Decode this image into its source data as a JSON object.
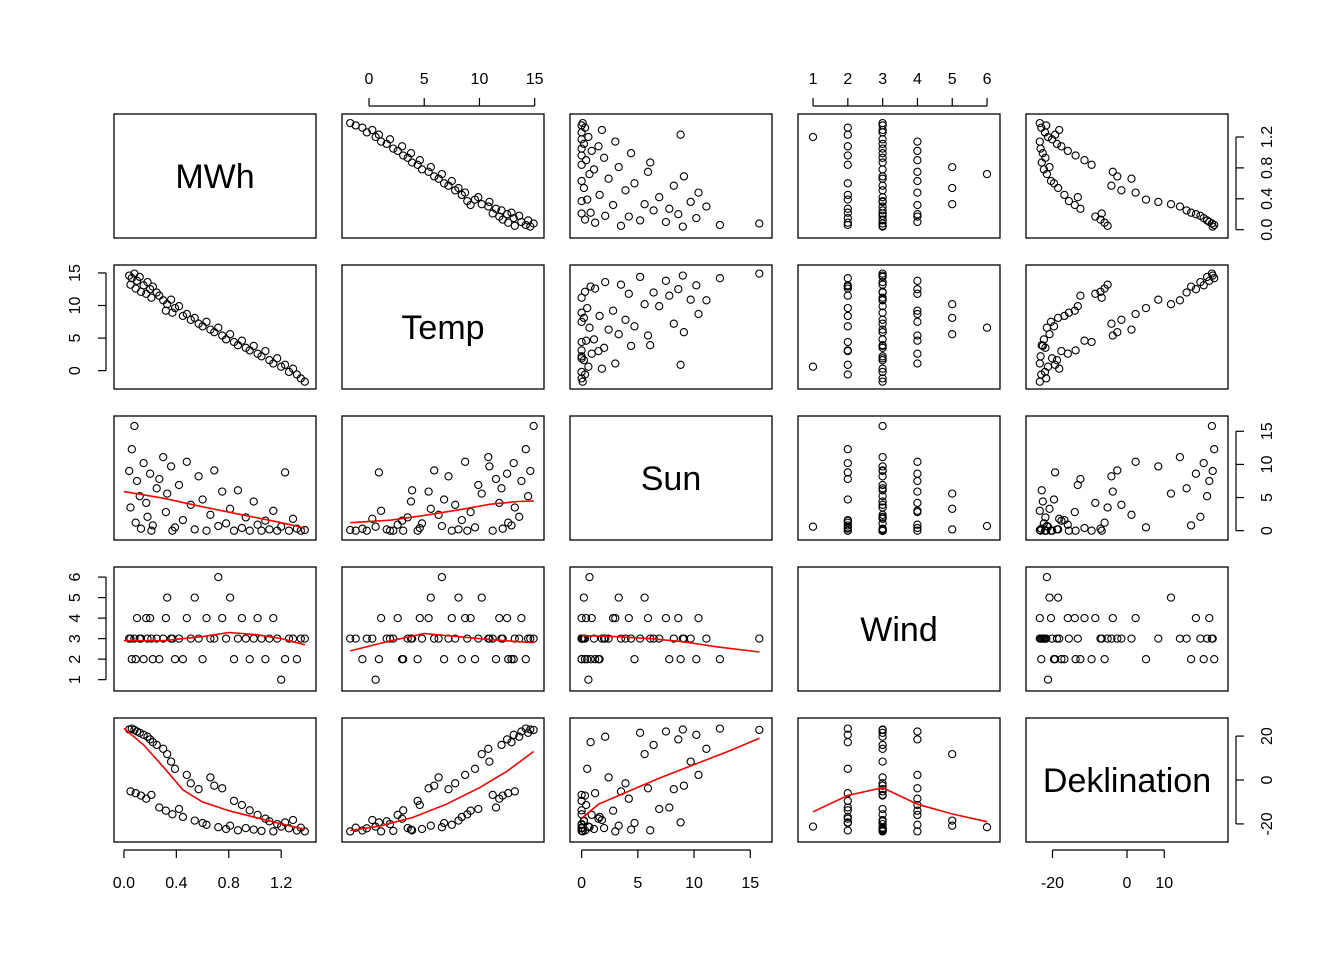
{
  "chart_data": {
    "type": "scatter",
    "subtype": "scatterplot-matrix",
    "grid": false,
    "point_style": "open-circle",
    "smoother_color": "#ff0000",
    "variables": [
      {
        "name": "MWh",
        "range": [
          -0.03,
          1.42
        ],
        "ticks": [
          0.0,
          0.4,
          0.8,
          1.2
        ],
        "tick_labels": [
          "0.0",
          "0.4",
          "0.8",
          "1.2"
        ]
      },
      {
        "name": "Temp",
        "range": [
          -1.9,
          15.3
        ],
        "ticks": [
          0,
          5,
          10,
          15
        ],
        "tick_labels": [
          "0",
          "5",
          "10",
          "15"
        ]
      },
      {
        "name": "Sun",
        "range": [
          -0.5,
          16.4
        ],
        "ticks": [
          0,
          5,
          10,
          15
        ],
        "tick_labels": [
          "0",
          "5",
          "10",
          "15"
        ]
      },
      {
        "name": "Wind",
        "range": [
          0.74,
          6.2
        ],
        "ticks": [
          1,
          2,
          3,
          4,
          5,
          6
        ],
        "tick_labels": [
          "1",
          "2",
          "3",
          "4",
          "5",
          "6"
        ]
      },
      {
        "name": "Deklination",
        "range": [
          -25.5,
          25.5
        ],
        "ticks": [
          -20,
          0,
          20
        ],
        "tick_labels": [
          "-20",
          "0",
          "20"
        ],
        "bottom_ticks": [
          -20,
          0,
          10
        ],
        "bottom_tick_labels": [
          "-20",
          "0",
          "10"
        ]
      }
    ],
    "axes_placement": {
      "top": [
        1,
        3
      ],
      "bottom": [
        0,
        2,
        4
      ],
      "left": [
        1,
        3
      ],
      "right": [
        0,
        2,
        4
      ]
    },
    "smoothed_panels": "lower",
    "observations": [
      {
        "MWh": 0.04,
        "Temp": 14.6,
        "Sun": 9.0,
        "Wind": 3,
        "Deklination": 23.0
      },
      {
        "MWh": 0.06,
        "Temp": 14.2,
        "Sun": 12.3,
        "Wind": 2,
        "Deklination": 23.4
      },
      {
        "MWh": 0.08,
        "Temp": 14.9,
        "Sun": 15.8,
        "Wind": 3,
        "Deklination": 22.8
      },
      {
        "MWh": 0.1,
        "Temp": 13.8,
        "Sun": 7.5,
        "Wind": 4,
        "Deklination": 22.1
      },
      {
        "MWh": 0.12,
        "Temp": 14.4,
        "Sun": 5.2,
        "Wind": 3,
        "Deklination": 21.5
      },
      {
        "MWh": 0.15,
        "Temp": 13.1,
        "Sun": 10.2,
        "Wind": 2,
        "Deklination": 20.6
      },
      {
        "MWh": 0.18,
        "Temp": 13.6,
        "Sun": 2.1,
        "Wind": 3,
        "Deklination": 19.7
      },
      {
        "MWh": 0.2,
        "Temp": 12.5,
        "Sun": 8.6,
        "Wind": 4,
        "Deklination": 18.5
      },
      {
        "MWh": 0.22,
        "Temp": 12.9,
        "Sun": 0.8,
        "Wind": 2,
        "Deklination": 17.2
      },
      {
        "MWh": 0.25,
        "Temp": 12.0,
        "Sun": 6.4,
        "Wind": 3,
        "Deklination": 16.0
      },
      {
        "MWh": 0.05,
        "Temp": 13.2,
        "Sun": 3.5,
        "Wind": 3,
        "Deklination": -5.2
      },
      {
        "MWh": 0.09,
        "Temp": 12.6,
        "Sun": 1.2,
        "Wind": 2,
        "Deklination": -6.0
      },
      {
        "MWh": 0.13,
        "Temp": 12.1,
        "Sun": 0.3,
        "Wind": 3,
        "Deklination": -7.1
      },
      {
        "MWh": 0.17,
        "Temp": 11.8,
        "Sun": 4.2,
        "Wind": 4,
        "Deklination": -8.5
      },
      {
        "MWh": 0.21,
        "Temp": 11.2,
        "Sun": 0.0,
        "Wind": 3,
        "Deklination": -6.8
      },
      {
        "MWh": 0.27,
        "Temp": 11.5,
        "Sun": 7.8,
        "Wind": 2,
        "Deklination": -12.5
      },
      {
        "MWh": 0.3,
        "Temp": 10.8,
        "Sun": 11.1,
        "Wind": 3,
        "Deklination": 14.2
      },
      {
        "MWh": 0.33,
        "Temp": 10.2,
        "Sun": 5.6,
        "Wind": 5,
        "Deklination": 11.8
      },
      {
        "MWh": 0.36,
        "Temp": 10.9,
        "Sun": 9.7,
        "Wind": 3,
        "Deklination": 8.4
      },
      {
        "MWh": 0.39,
        "Temp": 9.6,
        "Sun": 0.5,
        "Wind": 2,
        "Deklination": 5.1
      },
      {
        "MWh": 0.32,
        "Temp": 9.2,
        "Sun": 2.8,
        "Wind": 4,
        "Deklination": -14.0
      },
      {
        "MWh": 0.37,
        "Temp": 8.9,
        "Sun": 0.0,
        "Wind": 3,
        "Deklination": -15.6
      },
      {
        "MWh": 0.42,
        "Temp": 9.9,
        "Sun": 6.9,
        "Wind": 3,
        "Deklination": -13.2
      },
      {
        "MWh": 0.45,
        "Temp": 8.4,
        "Sun": 1.6,
        "Wind": 2,
        "Deklination": -16.8
      },
      {
        "MWh": 0.48,
        "Temp": 8.7,
        "Sun": 10.4,
        "Wind": 4,
        "Deklination": 2.3
      },
      {
        "MWh": 0.51,
        "Temp": 7.8,
        "Sun": 3.9,
        "Wind": 3,
        "Deklination": -1.5
      },
      {
        "MWh": 0.54,
        "Temp": 8.1,
        "Sun": 0.2,
        "Wind": 5,
        "Deklination": -18.5
      },
      {
        "MWh": 0.57,
        "Temp": 7.2,
        "Sun": 8.2,
        "Wind": 3,
        "Deklination": -4.2
      },
      {
        "MWh": 0.6,
        "Temp": 6.8,
        "Sun": 4.7,
        "Wind": 2,
        "Deklination": -19.6
      },
      {
        "MWh": 0.63,
        "Temp": 7.5,
        "Sun": 0.0,
        "Wind": 4,
        "Deklination": -20.4
      },
      {
        "MWh": 0.66,
        "Temp": 6.3,
        "Sun": 2.4,
        "Wind": 3,
        "Deklination": 1.2
      },
      {
        "MWh": 0.69,
        "Temp": 5.9,
        "Sun": 9.1,
        "Wind": 3,
        "Deklination": -2.6
      },
      {
        "MWh": 0.72,
        "Temp": 6.6,
        "Sun": 0.7,
        "Wind": 6,
        "Deklination": -21.5
      },
      {
        "MWh": 0.75,
        "Temp": 5.4,
        "Sun": 5.9,
        "Wind": 4,
        "Deklination": -3.8
      },
      {
        "MWh": 0.78,
        "Temp": 4.8,
        "Sun": 1.1,
        "Wind": 3,
        "Deklination": -22.3
      },
      {
        "MWh": 0.81,
        "Temp": 5.6,
        "Sun": 3.3,
        "Wind": 5,
        "Deklination": -20.8
      },
      {
        "MWh": 0.84,
        "Temp": 4.4,
        "Sun": 0.0,
        "Wind": 2,
        "Deklination": -9.5
      },
      {
        "MWh": 0.87,
        "Temp": 3.9,
        "Sun": 6.1,
        "Wind": 3,
        "Deklination": -22.9
      },
      {
        "MWh": 0.9,
        "Temp": 4.6,
        "Sun": 0.4,
        "Wind": 4,
        "Deklination": -11.4
      },
      {
        "MWh": 0.93,
        "Temp": 3.5,
        "Sun": 2.0,
        "Wind": 3,
        "Deklination": -21.9
      },
      {
        "MWh": 0.96,
        "Temp": 3.1,
        "Sun": 0.0,
        "Wind": 2,
        "Deklination": -13.8
      },
      {
        "MWh": 0.99,
        "Temp": 3.8,
        "Sun": 4.4,
        "Wind": 3,
        "Deklination": -22.6
      },
      {
        "MWh": 1.02,
        "Temp": 2.6,
        "Sun": 0.9,
        "Wind": 4,
        "Deklination": -15.9
      },
      {
        "MWh": 1.05,
        "Temp": 2.2,
        "Sun": 0.0,
        "Wind": 3,
        "Deklination": -23.2
      },
      {
        "MWh": 1.08,
        "Temp": 3.0,
        "Sun": 1.5,
        "Wind": 2,
        "Deklination": -17.6
      },
      {
        "MWh": 1.11,
        "Temp": 1.6,
        "Sun": 0.2,
        "Wind": 3,
        "Deklination": -18.8
      },
      {
        "MWh": 1.14,
        "Temp": 1.1,
        "Sun": 3.0,
        "Wind": 4,
        "Deklination": -23.4
      },
      {
        "MWh": 1.17,
        "Temp": 1.9,
        "Sun": 0.0,
        "Wind": 3,
        "Deklination": -20.1
      },
      {
        "MWh": 1.2,
        "Temp": 0.6,
        "Sun": 0.6,
        "Wind": 1,
        "Deklination": -21.2
      },
      {
        "MWh": 1.23,
        "Temp": 0.9,
        "Sun": 8.8,
        "Wind": 2,
        "Deklination": -19.3
      },
      {
        "MWh": 1.26,
        "Temp": -0.2,
        "Sun": 0.0,
        "Wind": 3,
        "Deklination": -22.0
      },
      {
        "MWh": 1.29,
        "Temp": 0.3,
        "Sun": 1.8,
        "Wind": 3,
        "Deklination": -18.2
      },
      {
        "MWh": 1.32,
        "Temp": -0.6,
        "Sun": 0.3,
        "Wind": 2,
        "Deklination": -23.0
      },
      {
        "MWh": 1.35,
        "Temp": -1.2,
        "Sun": 0.0,
        "Wind": 3,
        "Deklination": -21.7
      },
      {
        "MWh": 1.38,
        "Temp": -1.7,
        "Sun": 0.1,
        "Wind": 3,
        "Deklination": -23.4
      }
    ],
    "smoothers": {
      "2_0": [
        [
          0.0,
          5.9
        ],
        [
          0.3,
          4.9
        ],
        [
          0.6,
          3.6
        ],
        [
          0.9,
          2.4
        ],
        [
          1.2,
          1.2
        ],
        [
          1.38,
          0.4
        ]
      ],
      "3_0": [
        [
          0.0,
          2.9
        ],
        [
          0.3,
          2.9
        ],
        [
          0.6,
          3.1
        ],
        [
          0.8,
          3.3
        ],
        [
          1.0,
          3.2
        ],
        [
          1.2,
          3.0
        ],
        [
          1.38,
          2.7
        ]
      ],
      "4_0": [
        [
          0.0,
          23.5
        ],
        [
          0.15,
          16.0
        ],
        [
          0.3,
          6.0
        ],
        [
          0.45,
          -4.5
        ],
        [
          0.6,
          -10.0
        ],
        [
          0.8,
          -14.0
        ],
        [
          1.0,
          -17.0
        ],
        [
          1.2,
          -20.0
        ],
        [
          1.38,
          -22.5
        ]
      ],
      "2_1": [
        [
          -1.7,
          1.2
        ],
        [
          2.0,
          1.6
        ],
        [
          5.0,
          2.3
        ],
        [
          8.0,
          3.1
        ],
        [
          11.0,
          4.0
        ],
        [
          13.5,
          4.4
        ],
        [
          14.9,
          4.5
        ]
      ],
      "3_1": [
        [
          -1.7,
          2.4
        ],
        [
          2.0,
          2.9
        ],
        [
          5.0,
          3.25
        ],
        [
          8.0,
          3.1
        ],
        [
          11.0,
          2.95
        ],
        [
          14.9,
          2.8
        ]
      ],
      "4_1": [
        [
          -1.7,
          -23.0
        ],
        [
          1.0,
          -21.0
        ],
        [
          4.0,
          -17.0
        ],
        [
          7.0,
          -11.0
        ],
        [
          10.0,
          -3.5
        ],
        [
          12.5,
          4.0
        ],
        [
          14.9,
          13.0
        ]
      ],
      "3_2": [
        [
          0.0,
          3.15
        ],
        [
          3.0,
          3.1
        ],
        [
          6.0,
          3.0
        ],
        [
          9.0,
          2.85
        ],
        [
          12.0,
          2.6
        ],
        [
          15.8,
          2.35
        ]
      ],
      "4_2": [
        [
          0.0,
          -17.5
        ],
        [
          1.5,
          -11.0
        ],
        [
          4.0,
          -5.5
        ],
        [
          7.0,
          1.0
        ],
        [
          10.0,
          7.0
        ],
        [
          13.0,
          13.0
        ],
        [
          15.8,
          19.0
        ]
      ],
      "4_3": [
        [
          1.0,
          -14.5
        ],
        [
          2.0,
          -7.0
        ],
        [
          3.0,
          -3.5
        ],
        [
          4.0,
          -11.0
        ],
        [
          5.0,
          -15.5
        ],
        [
          6.0,
          -19.0
        ]
      ]
    }
  }
}
